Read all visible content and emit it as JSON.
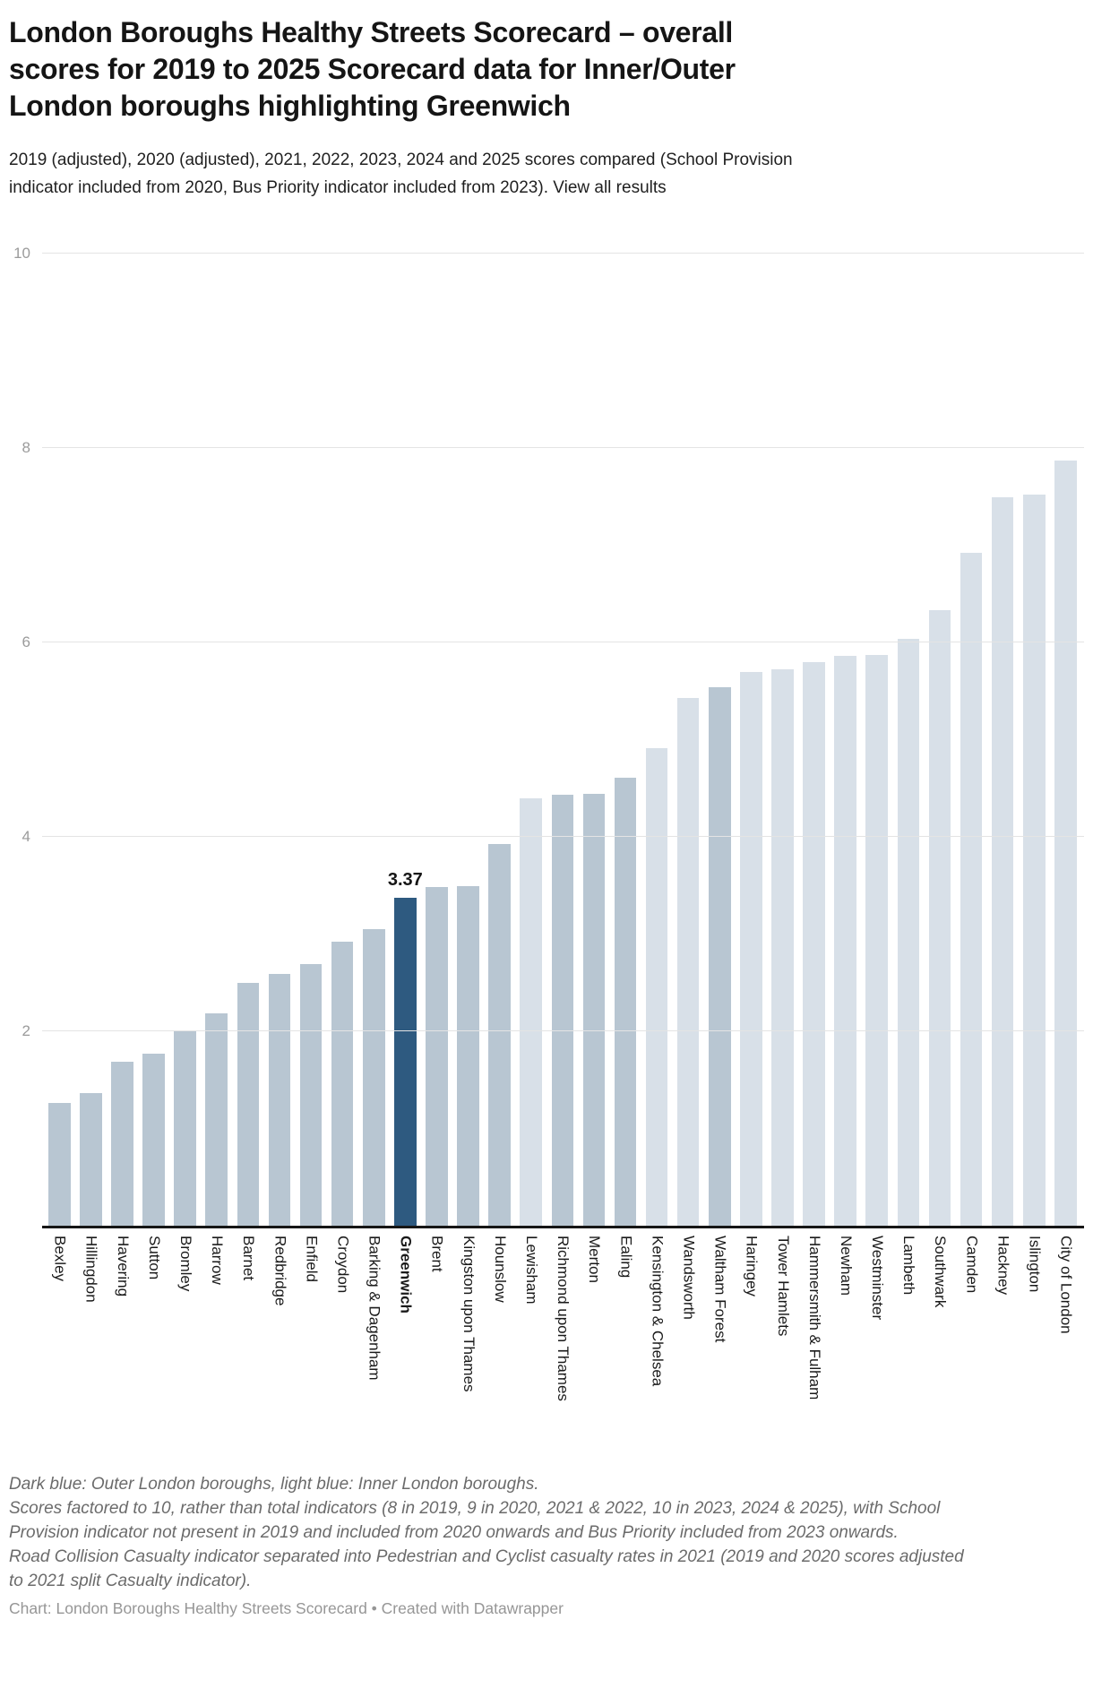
{
  "header": {
    "title": "London Boroughs Healthy Streets Scorecard – overall scores for 2019 to 2025 Scorecard data for Inner/Outer London boroughs highlighting Greenwich",
    "subtitle_text": "2019 (adjusted), 2020 (adjusted), 2021, 2022, 2023, 2024 and 2025 scores compared (School Provision indicator included from 2020, Bus Priority indicator included from 2023).",
    "view_all_label": "View all results"
  },
  "chart_data": {
    "type": "bar",
    "title": "London Boroughs Healthy Streets Scorecard – overall scores for 2019 to 2025",
    "xlabel": "",
    "ylabel": "",
    "ylim": [
      0,
      10
    ],
    "yticks": [
      2,
      4,
      6,
      8,
      10
    ],
    "grid": "horizontal light gridlines, dark x-axis baseline, no legend",
    "colors": {
      "outer": "#b8c6d2",
      "inner": "#d8e0e8",
      "highlight": "#2e5a80"
    },
    "color_meaning": {
      "outer": "Outer London borough (dark blue)",
      "inner": "Inner London borough (light blue)",
      "highlight": "Greenwich (highlighted navy)"
    },
    "highlight_value_label": "3.37",
    "boroughs": [
      {
        "name": "Bexley",
        "value": 1.26,
        "group": "outer"
      },
      {
        "name": "Hillingdon",
        "value": 1.36,
        "group": "outer"
      },
      {
        "name": "Havering",
        "value": 1.69,
        "group": "outer"
      },
      {
        "name": "Sutton",
        "value": 1.77,
        "group": "outer"
      },
      {
        "name": "Bromley",
        "value": 2.0,
        "group": "outer"
      },
      {
        "name": "Harrow",
        "value": 2.18,
        "group": "outer"
      },
      {
        "name": "Barnet",
        "value": 2.5,
        "group": "outer"
      },
      {
        "name": "Redbridge",
        "value": 2.59,
        "group": "outer"
      },
      {
        "name": "Enfield",
        "value": 2.69,
        "group": "outer"
      },
      {
        "name": "Croydon",
        "value": 2.92,
        "group": "outer"
      },
      {
        "name": "Barking & Dagenham",
        "value": 3.05,
        "group": "outer"
      },
      {
        "name": "Greenwich",
        "value": 3.37,
        "group": "highlight",
        "value_label": "3.37"
      },
      {
        "name": "Brent",
        "value": 3.48,
        "group": "outer"
      },
      {
        "name": "Kingston upon Thames",
        "value": 3.49,
        "group": "outer"
      },
      {
        "name": "Hounslow",
        "value": 3.93,
        "group": "outer"
      },
      {
        "name": "Lewisham",
        "value": 4.4,
        "group": "inner"
      },
      {
        "name": "Richmond upon Thames",
        "value": 4.43,
        "group": "outer"
      },
      {
        "name": "Merton",
        "value": 4.44,
        "group": "outer"
      },
      {
        "name": "Ealing",
        "value": 4.61,
        "group": "outer"
      },
      {
        "name": "Kensington & Chelsea",
        "value": 4.91,
        "group": "inner"
      },
      {
        "name": "Wandsworth",
        "value": 5.43,
        "group": "inner"
      },
      {
        "name": "Waltham Forest",
        "value": 5.54,
        "group": "outer"
      },
      {
        "name": "Haringey",
        "value": 5.7,
        "group": "inner"
      },
      {
        "name": "Tower Hamlets",
        "value": 5.72,
        "group": "inner"
      },
      {
        "name": "Hammersmith & Fulham",
        "value": 5.8,
        "group": "inner"
      },
      {
        "name": "Newham",
        "value": 5.86,
        "group": "inner"
      },
      {
        "name": "Westminster",
        "value": 5.87,
        "group": "inner"
      },
      {
        "name": "Lambeth",
        "value": 6.04,
        "group": "inner"
      },
      {
        "name": "Southwark",
        "value": 6.33,
        "group": "inner"
      },
      {
        "name": "Camden",
        "value": 6.92,
        "group": "inner"
      },
      {
        "name": "Hackney",
        "value": 7.49,
        "group": "inner"
      },
      {
        "name": "Islington",
        "value": 7.52,
        "group": "inner"
      },
      {
        "name": "City of London",
        "value": 7.87,
        "group": "inner"
      }
    ]
  },
  "footer": {
    "notes": [
      "Dark blue: Outer London boroughs, light blue: Inner London boroughs.",
      "Scores factored to 10, rather than total indicators (8 in 2019, 9 in 2020, 2021 & 2022, 10 in 2023, 2024 & 2025), with School Provision indicator not present in 2019 and included from 2020 onwards and Bus Priority included from 2023 onwards.",
      "Road Collision Casualty indicator separated into Pedestrian and Cyclist casualty rates in 2021 (2019 and 2020 scores adjusted to 2021 split Casualty indicator)."
    ],
    "attribution": "Chart: London Boroughs Healthy Streets Scorecard • Created with Datawrapper"
  }
}
